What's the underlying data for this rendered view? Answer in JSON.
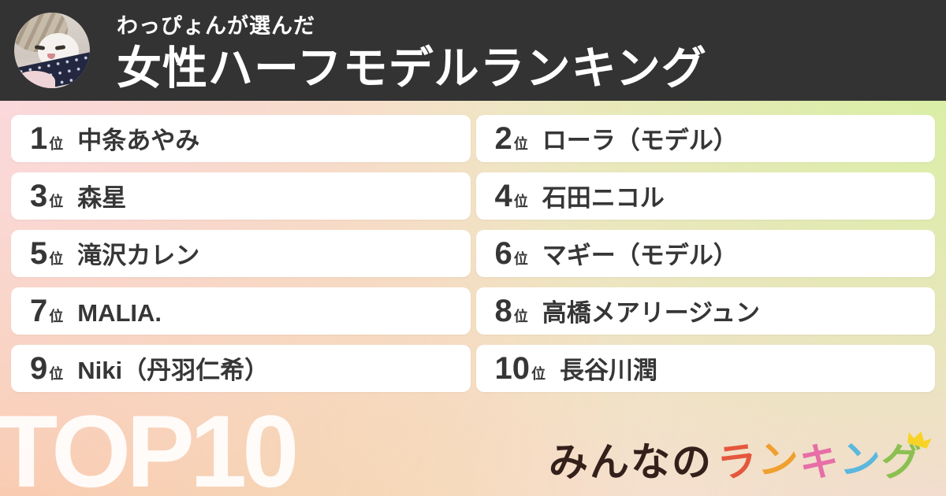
{
  "header": {
    "avatar_icon": "cat-avatar",
    "subtitle": "わっぴょんが選んだ",
    "title": "女性ハーフモデルランキング"
  },
  "ranking": {
    "rank_suffix": "位",
    "items": [
      {
        "rank": "1",
        "name": "中条あやみ"
      },
      {
        "rank": "2",
        "name": "ローラ（モデル）"
      },
      {
        "rank": "3",
        "name": "森星"
      },
      {
        "rank": "4",
        "name": "石田ニコル"
      },
      {
        "rank": "5",
        "name": "滝沢カレン"
      },
      {
        "rank": "6",
        "name": "マギー（モデル）"
      },
      {
        "rank": "7",
        "name": "MALIA."
      },
      {
        "rank": "8",
        "name": "高橋メアリージュン"
      },
      {
        "rank": "9",
        "name": "Niki（丹羽仁希）"
      },
      {
        "rank": "10",
        "name": "長谷川潤"
      }
    ]
  },
  "footer": {
    "top_label": "TOP10",
    "logo": {
      "crown_icon": "crown-icon",
      "letters": [
        {
          "ch": "み",
          "color": "#34201a"
        },
        {
          "ch": "ん",
          "color": "#34201a"
        },
        {
          "ch": "な",
          "color": "#34201a"
        },
        {
          "ch": "の",
          "color": "#34201a"
        },
        {
          "ch": "ラ",
          "color": "#e4573d"
        },
        {
          "ch": "ン",
          "color": "#efa02f"
        },
        {
          "ch": "キ",
          "color": "#e76ea6"
        },
        {
          "ch": "ン",
          "color": "#5bb7dd"
        },
        {
          "ch": "グ",
          "color": "#8bc051"
        }
      ]
    }
  },
  "colors": {
    "header_bg": "#333333",
    "card_bg": "#ffffff",
    "card_text": "#363636",
    "bg_top_left": "#fbd8dc",
    "bg_top_right": "#d7f0a2",
    "bg_bottom_left": "#f8c59b",
    "bg_bottom_right": "#fbd7da",
    "crown": "#f7d326",
    "watermark": "#ffffff"
  }
}
